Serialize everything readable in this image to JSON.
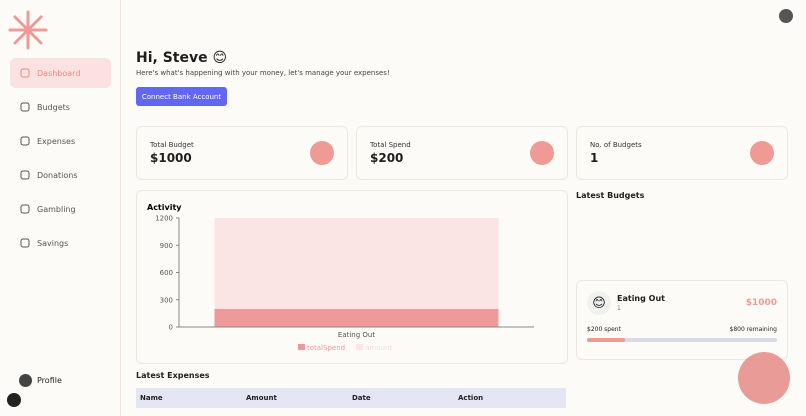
{
  "sidebar": {
    "nav": [
      "Dashboard",
      "Budgets",
      "Expenses",
      "Donations",
      "Gambling",
      "Savings"
    ],
    "profile": "Profile"
  },
  "header": {
    "title": "Hi, Steve 😊",
    "subtitle": "Here's what's happening with your money, let's manage your expenses!",
    "button": "Connect Bank Account"
  },
  "cards": [
    {
      "label": "Total Budget",
      "value": "$1000"
    },
    {
      "label": "Total Spend",
      "value": "$200"
    },
    {
      "label": "No. of Budgets",
      "value": "1"
    }
  ],
  "chart_data": {
    "type": "bar",
    "stacked": true,
    "title": "Activity",
    "categories": [
      "Eating Out"
    ],
    "series": [
      {
        "name": "totalSpend",
        "color": "#ef9a9a",
        "values": [
          200
        ]
      },
      {
        "name": "amount",
        "color": "#fbe4e4",
        "values": [
          1000
        ]
      }
    ],
    "ylim": [
      0,
      1200
    ],
    "yticks": [
      0,
      300,
      600,
      900,
      1200
    ]
  },
  "latest_budgets": {
    "title": "Latest Budgets",
    "items": [
      {
        "icon": "😊",
        "name": "Eating Out",
        "count": "1",
        "amount": "$1000",
        "spent": "$200 spent",
        "remaining": "$800 remaining",
        "progress": 20
      }
    ]
  },
  "latest_expenses": {
    "title": "Latest Expenses",
    "columns": [
      "Name",
      "Amount",
      "Date",
      "Action"
    ]
  }
}
